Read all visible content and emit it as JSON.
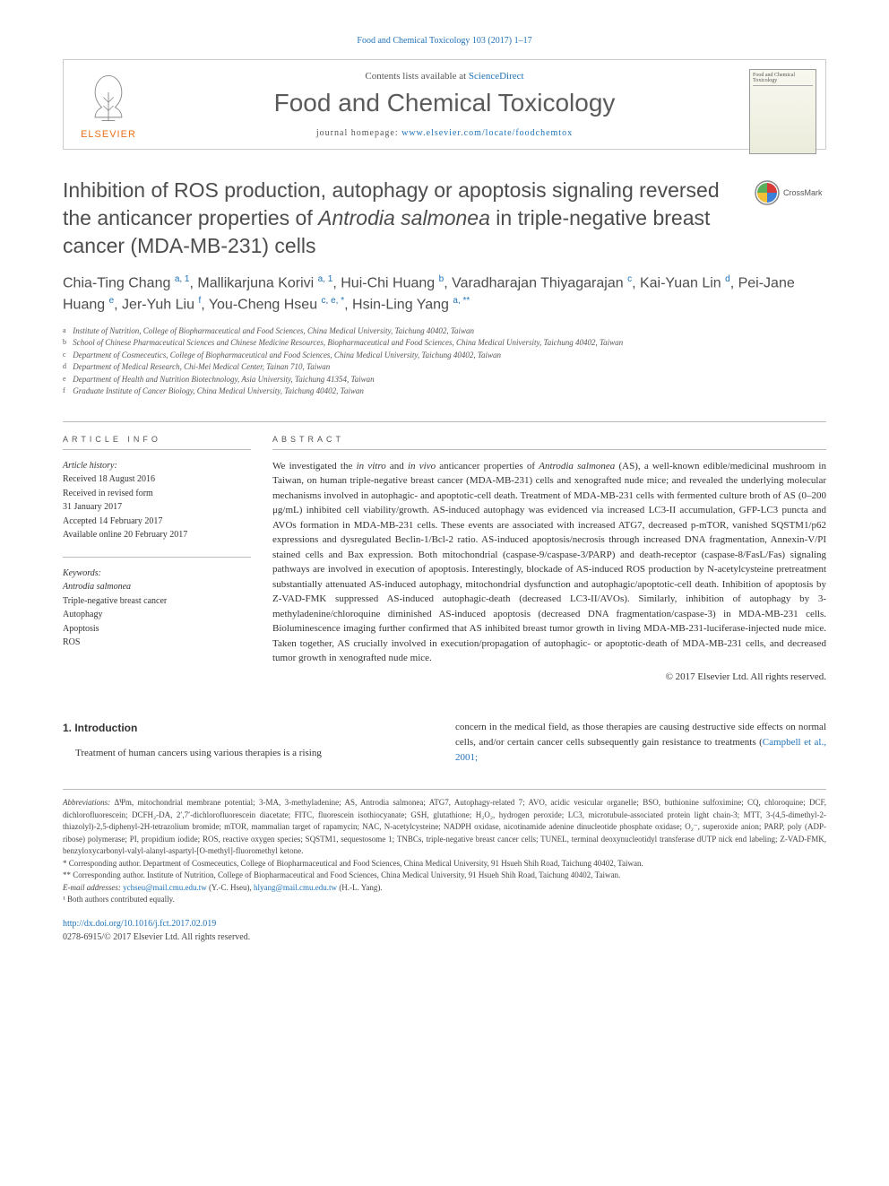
{
  "header": {
    "citation": "Food and Chemical Toxicology 103 (2017) 1–17",
    "contents_prefix": "Contents lists available at",
    "contents_link": "ScienceDirect",
    "journal_name": "Food and Chemical Toxicology",
    "homepage_prefix": "journal homepage:",
    "homepage_url": "www.elsevier.com/locate/foodchemtox",
    "publisher": "ELSEVIER",
    "cover_label": "Food and Chemical Toxicology",
    "crossmark": "CrossMark"
  },
  "article": {
    "title_pre": "Inhibition of ROS production, autophagy or apoptosis signaling reversed the anticancer properties of ",
    "title_italic": "Antrodia salmonea",
    "title_post": " in triple-negative breast cancer (MDA-MB-231) cells",
    "authors_html": "Chia-Ting Chang <sup>a, 1</sup>, Mallikarjuna Korivi <sup>a, 1</sup>, Hui-Chi Huang <sup>b</sup>, Varadharajan Thiyagarajan <sup>c</sup>, Kai-Yuan Lin <sup>d</sup>, Pei-Jane Huang <sup>e</sup>, Jer-Yuh Liu <sup>f</sup>, You-Cheng Hseu <sup>c, e, *</sup>, Hsin-Ling Yang <sup>a, **</sup>",
    "affiliations": [
      {
        "label": "a",
        "text": "Institute of Nutrition, College of Biopharmaceutical and Food Sciences, China Medical University, Taichung 40402, Taiwan"
      },
      {
        "label": "b",
        "text": "School of Chinese Pharmaceutical Sciences and Chinese Medicine Resources, Biopharmaceutical and Food Sciences, China Medical University, Taichung 40402, Taiwan"
      },
      {
        "label": "c",
        "text": "Department of Cosmeceutics, College of Biopharmaceutical and Food Sciences, China Medical University, Taichung 40402, Taiwan"
      },
      {
        "label": "d",
        "text": "Department of Medical Research, Chi-Mei Medical Center, Tainan 710, Taiwan"
      },
      {
        "label": "e",
        "text": "Department of Health and Nutrition Biotechnology, Asia University, Taichung 41354, Taiwan"
      },
      {
        "label": "f",
        "text": "Graduate Institute of Cancer Biology, China Medical University, Taichung 40402, Taiwan"
      }
    ]
  },
  "info": {
    "heading": "ARTICLE INFO",
    "history_label": "Article history:",
    "received": "Received 18 August 2016",
    "revised1": "Received in revised form",
    "revised2": "31 January 2017",
    "accepted": "Accepted 14 February 2017",
    "online": "Available online 20 February 2017",
    "keywords_label": "Keywords:",
    "keywords": [
      "Antrodia salmonea",
      "Triple-negative breast cancer",
      "Autophagy",
      "Apoptosis",
      "ROS"
    ]
  },
  "abstract": {
    "heading": "ABSTRACT",
    "body_pre": "We investigated the ",
    "body_it1": "in vitro",
    "body_mid1": " and ",
    "body_it2": "in vivo",
    "body_mid2": " anticancer properties of ",
    "body_it3": "Antrodia salmonea",
    "body_post": " (AS), a well-known edible/medicinal mushroom in Taiwan, on human triple-negative breast cancer (MDA-MB-231) cells and xenografted nude mice; and revealed the underlying molecular mechanisms involved in autophagic- and apoptotic-cell death. Treatment of MDA-MB-231 cells with fermented culture broth of AS (0–200 μg/mL) inhibited cell viability/growth. AS-induced autophagy was evidenced via increased LC3-II accumulation, GFP-LC3 puncta and AVOs formation in MDA-MB-231 cells. These events are associated with increased ATG7, decreased p-mTOR, vanished SQSTM1/p62 expressions and dysregulated Beclin-1/Bcl-2 ratio. AS-induced apoptosis/necrosis through increased DNA fragmentation, Annexin-V/PI stained cells and Bax expression. Both mitochondrial (caspase-9/caspase-3/PARP) and death-receptor (caspase-8/FasL/Fas) signaling pathways are involved in execution of apoptosis. Interestingly, blockade of AS-induced ROS production by N-acetylcysteine pretreatment substantially attenuated AS-induced autophagy, mitochondrial dysfunction and autophagic/apoptotic-cell death. Inhibition of apoptosis by Z-VAD-FMK suppressed AS-induced autophagic-death (decreased LC3-II/AVOs). Similarly, inhibition of autophagy by 3-methyladenine/chloroquine diminished AS-induced apoptosis (decreased DNA fragmentation/caspase-3) in MDA-MB-231 cells. Bioluminescence imaging further confirmed that AS inhibited breast tumor growth in living MDA-MB-231-luciferase-injected nude mice. Taken together, AS crucially involved in execution/propagation of autophagic- or apoptotic-death of MDA-MB-231 cells, and decreased tumor growth in xenografted nude mice.",
    "copyright": "© 2017 Elsevier Ltd. All rights reserved."
  },
  "intro": {
    "heading": "1. Introduction",
    "left": "Treatment of human cancers using various therapies is a rising",
    "right_pre": "concern in the medical field, as those therapies are causing destructive side effects on normal cells, and/or certain cancer cells subsequently gain resistance to treatments (",
    "right_link": "Campbell et al., 2001;"
  },
  "footnotes": {
    "abbrev_label": "Abbreviations:",
    "abbrev_text": " ΔΨm, mitochondrial membrane potential; 3-MA, 3-methyladenine; AS, Antrodia salmonea; ATG7, Autophagy-related 7; AVO, acidic vesicular organelle; BSO, buthionine sulfoximine; CQ, chloroquine; DCF, dichlorofluorescein; DCFH₂-DA, 2′,7′-dichlorofluorescein diacetate; FITC, fluorescein isothiocyanate; GSH, glutathione; H₂O₂, hydrogen peroxide; LC3, microtubule-associated protein light chain-3; MTT, 3-(4,5-dimethyl-2-thiazolyl)-2,5-diphenyl-2H-tetrazolium bromide; mTOR, mammalian target of rapamycin; NAC, N-acetylcysteine; NADPH oxidase, nicotinamide adenine dinucleotide phosphate oxidase; O₂⁻, superoxide anion; PARP, poly (ADP-ribose) polymerase; PI, propidium iodide; ROS, reactive oxygen species; SQSTM1, sequestosome 1; TNBCs, triple-negative breast cancer cells; TUNEL, terminal deoxynucleotidyl transferase dUTP nick end labeling; Z-VAD-FMK, benzyloxycarbonyl-valyl-alanyl-aspartyl-[O-methyl]-fluoromethyl ketone.",
    "corr1": "* Corresponding author. Department of Cosmeceutics, College of Biopharmaceutical and Food Sciences, China Medical University, 91 Hsueh Shih Road, Taichung 40402, Taiwan.",
    "corr2": "** Corresponding author. Institute of Nutrition, College of Biopharmaceutical and Food Sciences, China Medical University, 91 Hsueh Shih Road, Taichung 40402, Taiwan.",
    "email_label": "E-mail addresses:",
    "email1": "ychseu@mail.cmu.edu.tw",
    "email1_name": " (Y.-C. Hseu), ",
    "email2": "hlyang@mail.cmu.edu.tw",
    "email2_name": " (H.-L. Yang).",
    "equal": "¹ Both authors contributed equally.",
    "doi": "http://dx.doi.org/10.1016/j.fct.2017.02.019",
    "issn": "0278-6915/© 2017 Elsevier Ltd. All rights reserved."
  },
  "colors": {
    "link": "#2173b8",
    "publisher": "#e9711c",
    "heading": "#4d4d4d",
    "text": "#333333",
    "border": "#bbbbbb"
  }
}
